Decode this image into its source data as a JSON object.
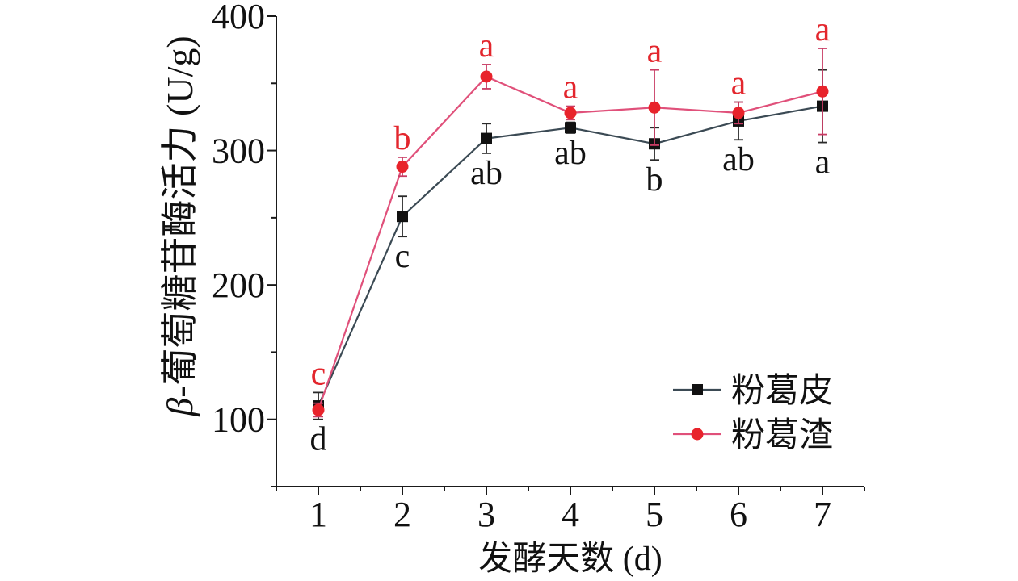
{
  "chart_data": {
    "type": "line",
    "xlabel": "发酵天数 (d)",
    "ylabel": "β-葡萄糖苷酶活力 (U/g)",
    "x": [
      1,
      2,
      3,
      4,
      5,
      6,
      7
    ],
    "x_tick_labels": [
      "1",
      "2",
      "3",
      "4",
      "5",
      "6",
      "7"
    ],
    "y_tick_labels": [
      "100",
      "200",
      "300",
      "400"
    ],
    "xlim": [
      0.5,
      7.5
    ],
    "ylim": [
      50,
      400
    ],
    "grid": false,
    "legend_position": "bottom-right",
    "series": [
      {
        "name": "粉葛皮",
        "marker": "square",
        "line_color": "#3b4a54",
        "marker_color": "#111111",
        "error_color": "#2a2a2a",
        "letter_color": "#111111",
        "letter_placement": "below",
        "values": [
          110,
          251,
          309,
          317,
          305,
          322,
          333
        ],
        "errors": [
          10,
          15,
          11,
          4,
          12,
          14,
          27
        ],
        "letters": [
          "d",
          "c",
          "ab",
          "ab",
          "b",
          "ab",
          "a"
        ]
      },
      {
        "name": "粉葛渣",
        "marker": "circle",
        "line_color": "#e0507a",
        "marker_color": "#e8232b",
        "error_color": "#c93c64",
        "letter_color": "#e3262d",
        "letter_placement": "above",
        "values": [
          107,
          288,
          355,
          328,
          332,
          328,
          344
        ],
        "errors": [
          5,
          7,
          9,
          5,
          28,
          8,
          32
        ],
        "letters": [
          "c",
          "b",
          "a",
          "a",
          "a",
          "a",
          "a"
        ]
      }
    ]
  }
}
